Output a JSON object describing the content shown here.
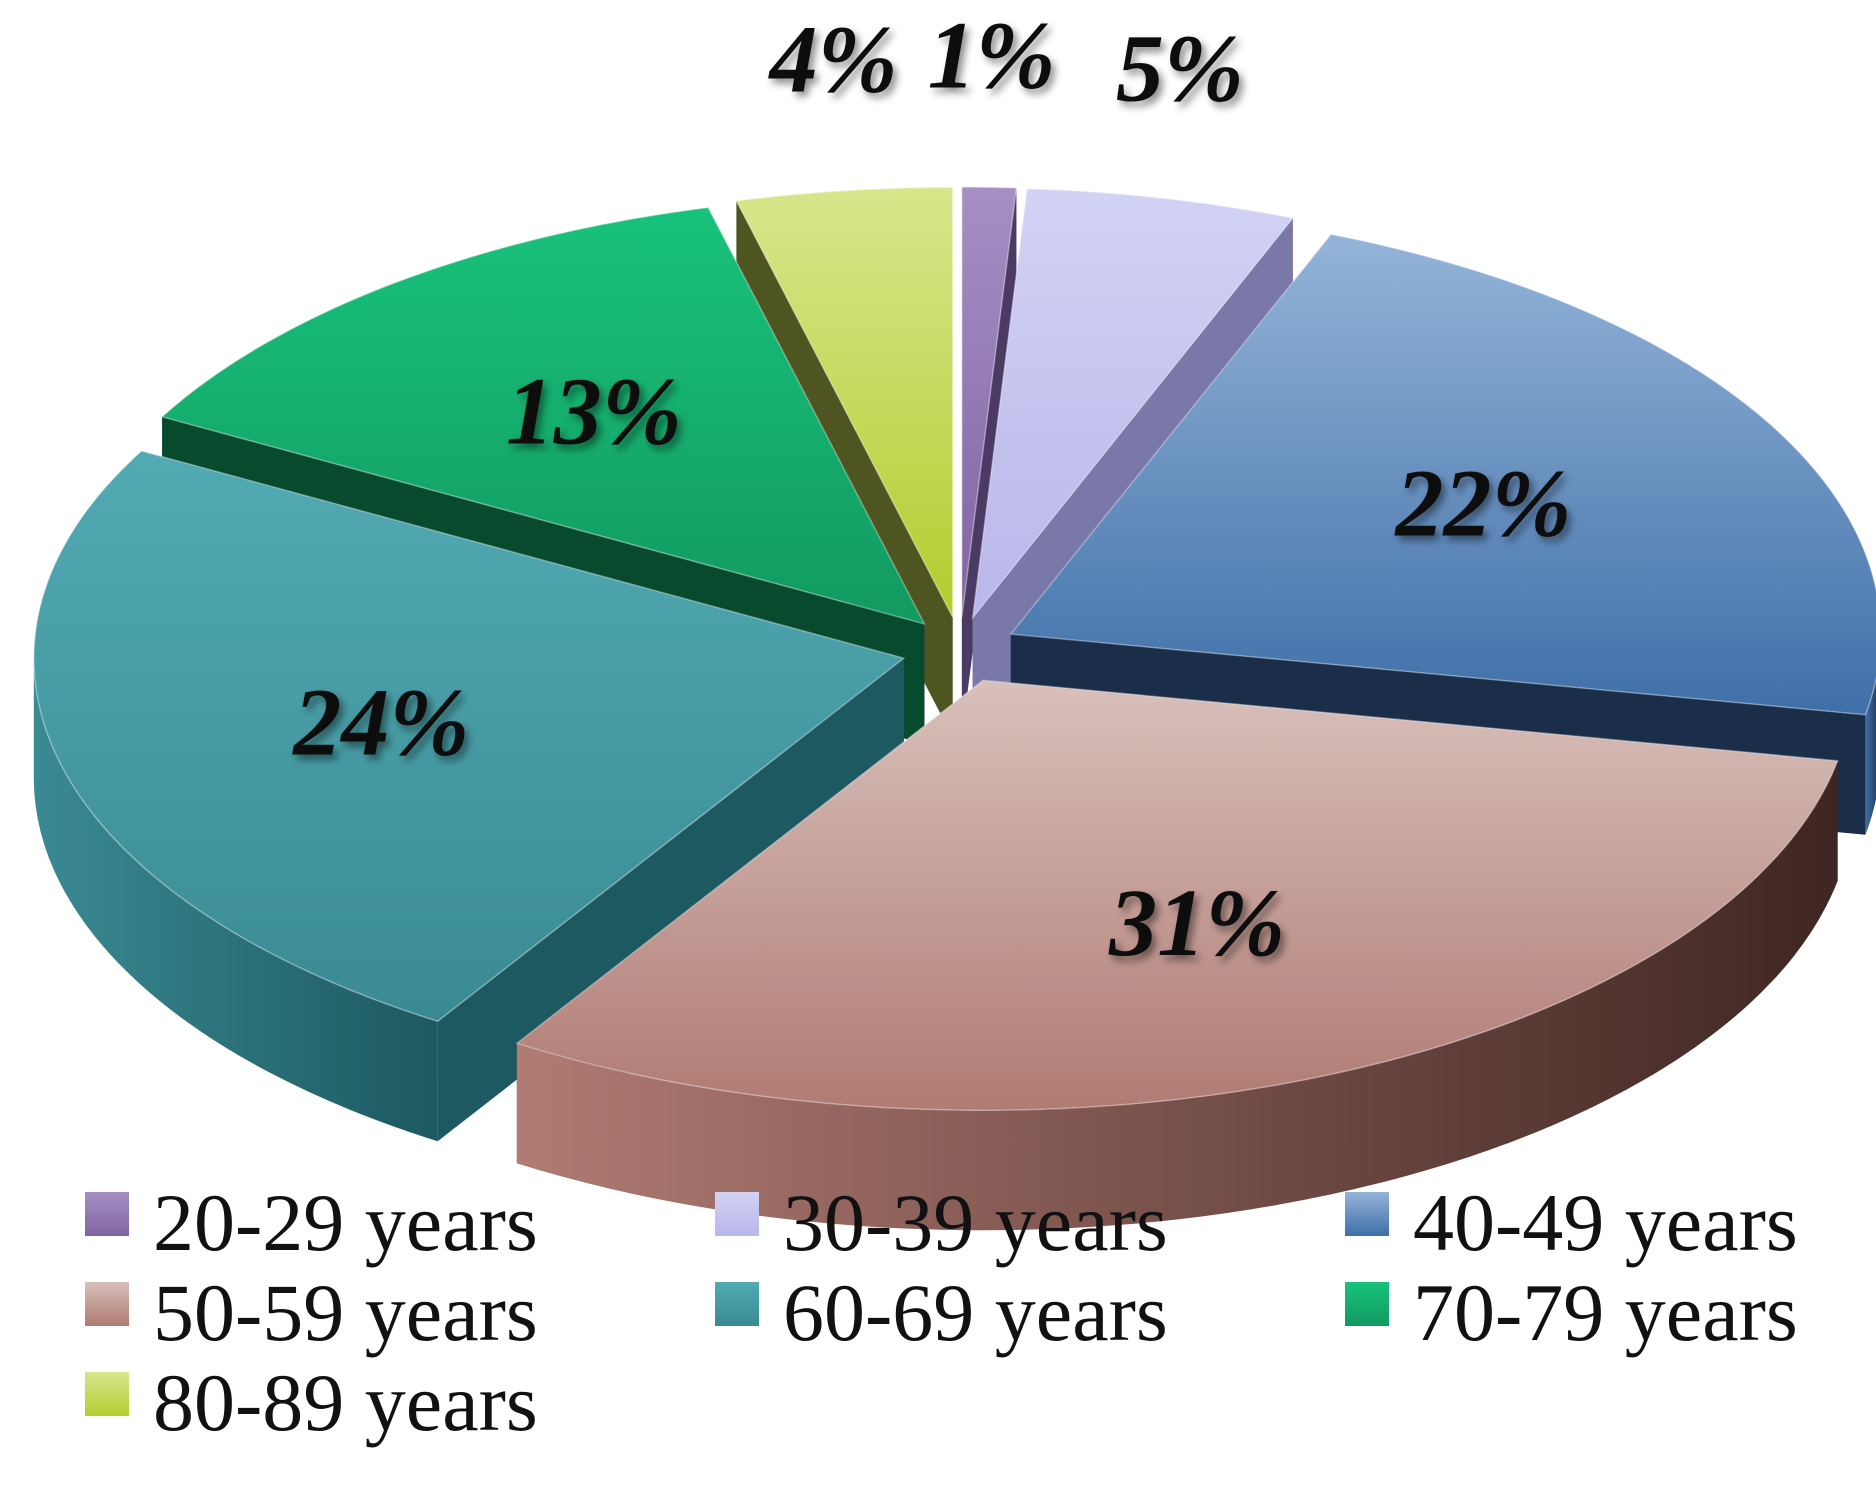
{
  "chart_data": {
    "type": "pie",
    "title": "",
    "style": "3d-exploded",
    "legend_position": "bottom",
    "slices": [
      {
        "label": "20-29 years",
        "value": 1,
        "display": "1%",
        "color": "#8064a2",
        "dark": "#4b3a63",
        "light": "#a58fc4"
      },
      {
        "label": "30-39 years",
        "value": 5,
        "display": "5%",
        "color": "#b8b7ea",
        "dark": "#7a78a8",
        "light": "#d2d2f5"
      },
      {
        "label": "40-49 years",
        "value": 22,
        "display": "22%",
        "color": "#3f6fa8",
        "dark": "#1a2e4a",
        "light": "#94b4d8"
      },
      {
        "label": "50-59 years",
        "value": 31,
        "display": "31%",
        "color": "#b07b73",
        "dark": "#3f2622",
        "light": "#d8c0bb"
      },
      {
        "label": "60-69 years",
        "value": 24,
        "display": "24%",
        "color": "#3a8a93",
        "dark": "#1d5960",
        "light": "#52aab3"
      },
      {
        "label": "70-79 years",
        "value": 13,
        "display": "13%",
        "color": "#129a60",
        "dark": "#074a2e",
        "light": "#18c27c"
      },
      {
        "label": "80-89 years",
        "value": 4,
        "display": "4%",
        "color": "#b5cc2e",
        "dark": "#4f5520",
        "light": "#d6e68c"
      }
    ]
  }
}
